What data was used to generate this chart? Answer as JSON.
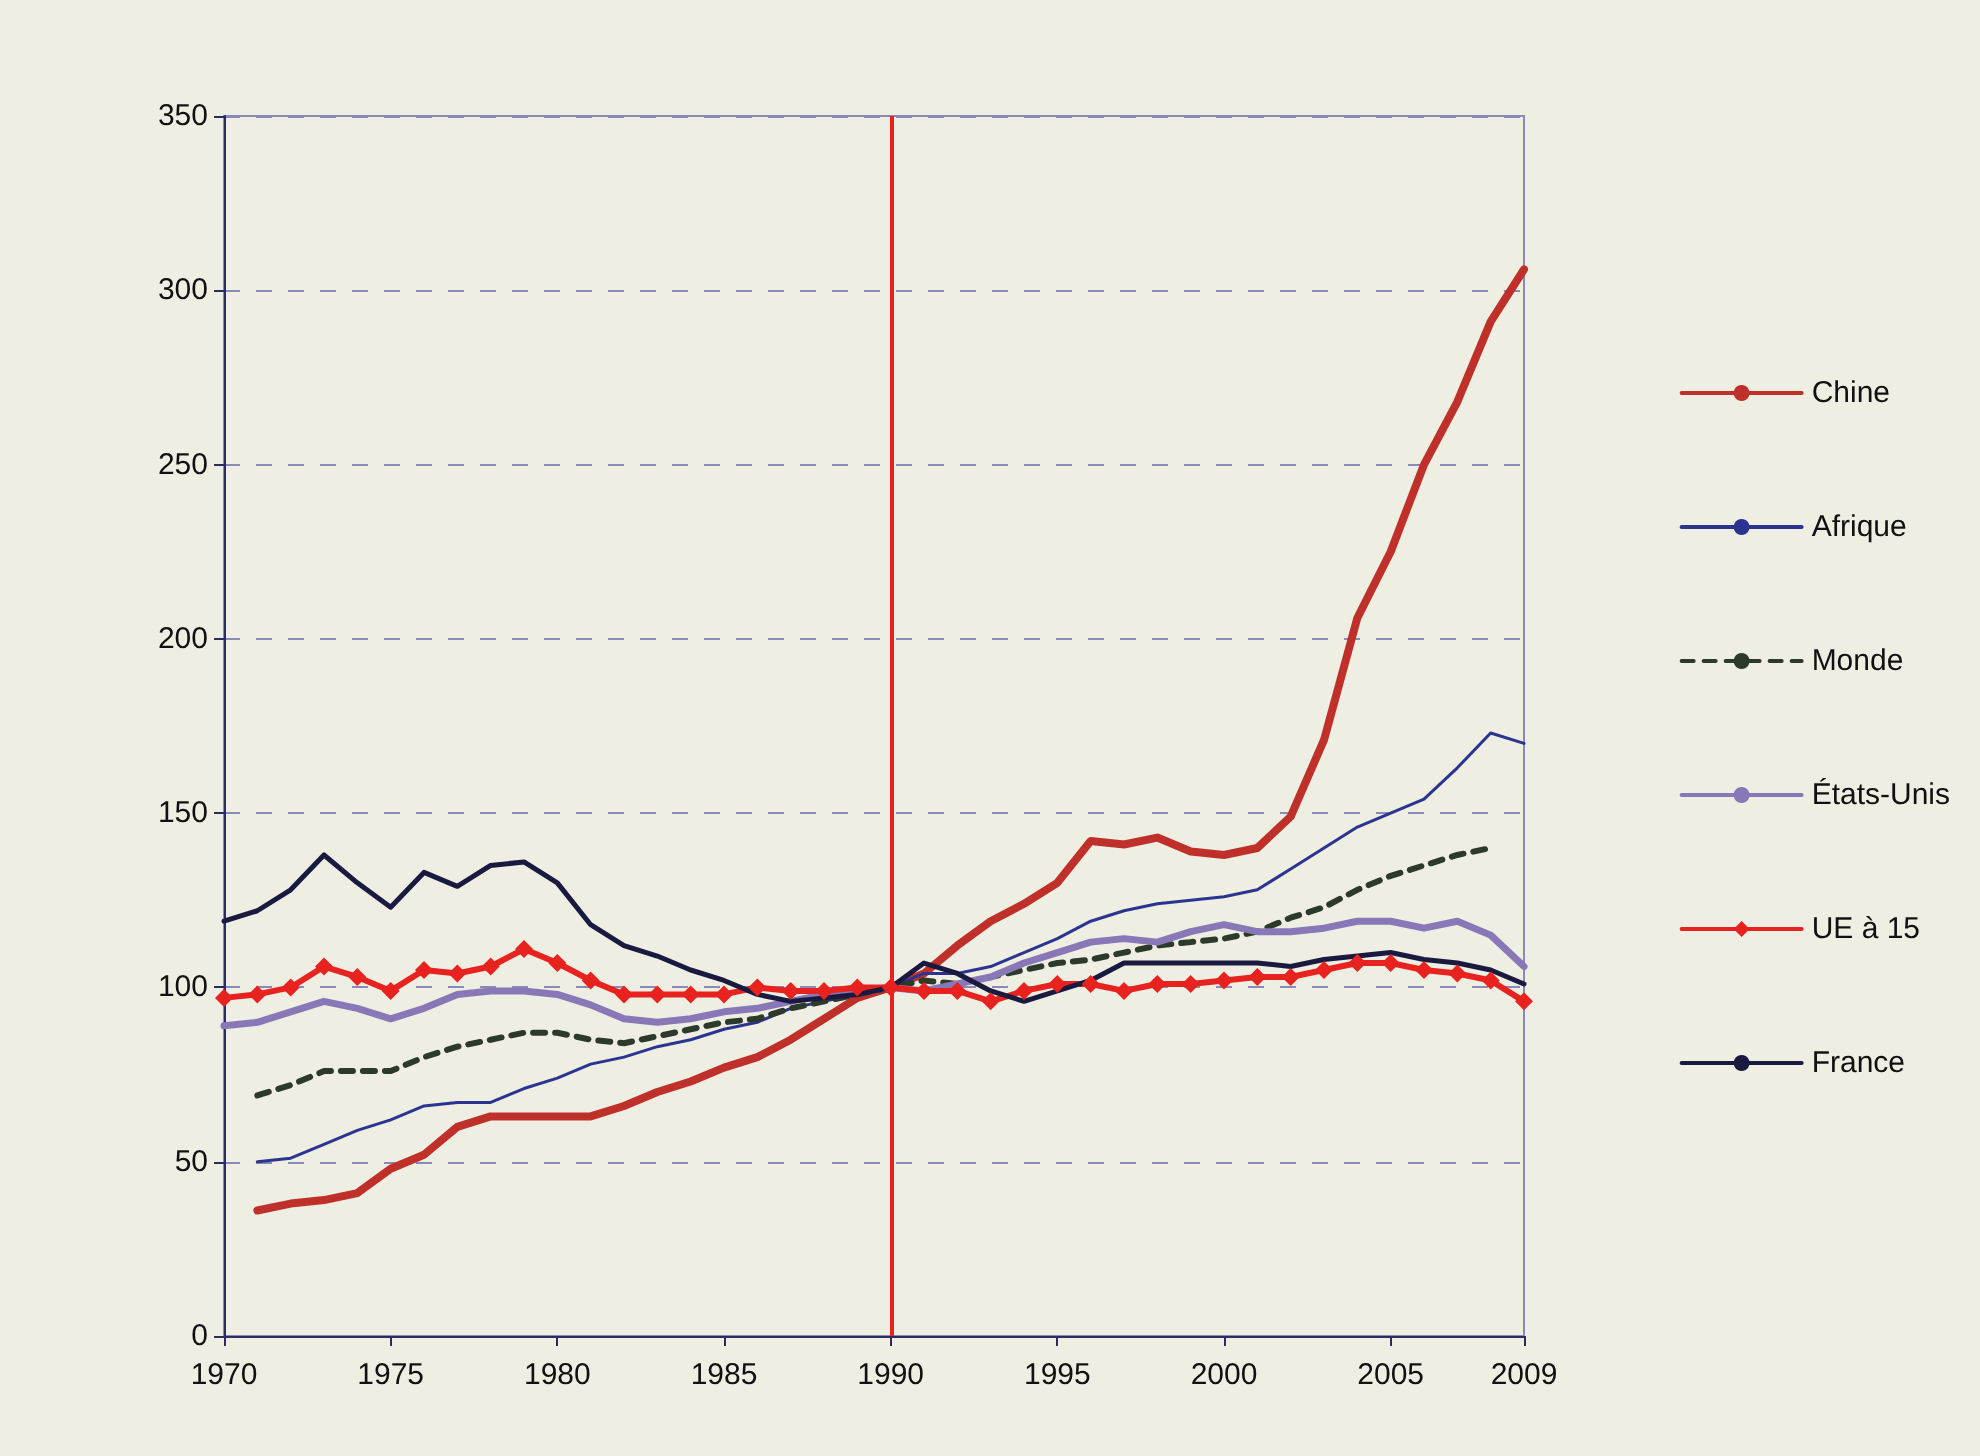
{
  "chart_data": {
    "type": "line",
    "x": [
      1970,
      1971,
      1972,
      1973,
      1974,
      1975,
      1976,
      1977,
      1978,
      1979,
      1980,
      1981,
      1982,
      1983,
      1984,
      1985,
      1986,
      1987,
      1988,
      1989,
      1990,
      1991,
      1992,
      1993,
      1994,
      1995,
      1996,
      1997,
      1998,
      1999,
      2000,
      2001,
      2002,
      2003,
      2004,
      2005,
      2006,
      2007,
      2008,
      2009
    ],
    "series": [
      {
        "name": "Chine",
        "color": "#c0302a",
        "line_style": "solid",
        "marker": "none",
        "values": [
          null,
          36,
          38,
          39,
          41,
          48,
          52,
          60,
          63,
          63,
          63,
          63,
          66,
          70,
          73,
          77,
          80,
          85,
          91,
          97,
          100,
          104,
          112,
          119,
          124,
          130,
          142,
          141,
          143,
          139,
          138,
          140,
          149,
          171,
          206,
          225,
          250,
          268,
          291,
          306
        ]
      },
      {
        "name": "Afrique",
        "color": "#2b3490",
        "line_style": "solid",
        "marker": "none",
        "values": [
          null,
          50,
          51,
          55,
          59,
          62,
          66,
          67,
          67,
          71,
          74,
          78,
          80,
          83,
          85,
          88,
          90,
          94,
          96,
          98,
          100,
          104,
          104,
          106,
          110,
          114,
          119,
          122,
          124,
          125,
          126,
          128,
          134,
          140,
          146,
          150,
          154,
          163,
          173,
          170
        ]
      },
      {
        "name": "Monde",
        "color": "#2d3a2a",
        "line_style": "dashed",
        "marker": "none",
        "values": [
          null,
          69,
          72,
          76,
          76,
          76,
          80,
          83,
          85,
          87,
          87,
          85,
          84,
          86,
          88,
          90,
          91,
          94,
          96,
          98,
          100,
          102,
          101,
          103,
          105,
          107,
          108,
          110,
          112,
          113,
          114,
          116,
          120,
          123,
          128,
          132,
          135,
          138,
          140,
          null
        ]
      },
      {
        "name": "États-Unis",
        "color": "#8878b8",
        "line_style": "solid",
        "marker": "none",
        "values": [
          89,
          90,
          93,
          96,
          94,
          91,
          94,
          98,
          99,
          99,
          98,
          95,
          91,
          90,
          91,
          93,
          94,
          96,
          98,
          99,
          100,
          99,
          101,
          103,
          107,
          110,
          113,
          114,
          113,
          116,
          118,
          116,
          116,
          117,
          119,
          119,
          117,
          119,
          115,
          106
        ]
      },
      {
        "name": "UE à 15",
        "color": "#e8221e",
        "line_style": "solid",
        "marker": "diamond",
        "values": [
          97,
          98,
          100,
          106,
          103,
          99,
          105,
          104,
          106,
          111,
          107,
          102,
          98,
          98,
          98,
          98,
          100,
          99,
          99,
          100,
          100,
          99,
          99,
          96,
          99,
          101,
          101,
          99,
          101,
          101,
          102,
          103,
          103,
          105,
          107,
          107,
          105,
          104,
          102,
          96
        ]
      },
      {
        "name": "France",
        "color": "#1a1a40",
        "line_style": "solid",
        "marker": "none",
        "values": [
          119,
          122,
          128,
          138,
          130,
          123,
          133,
          129,
          135,
          136,
          130,
          118,
          112,
          109,
          105,
          102,
          98,
          96,
          97,
          98,
          100,
          107,
          104,
          99,
          96,
          99,
          102,
          107,
          107,
          107,
          107,
          107,
          106,
          108,
          109,
          110,
          108,
          107,
          105,
          101
        ]
      }
    ],
    "xlim": [
      1970,
      2009
    ],
    "xticks": [
      1970,
      1975,
      1980,
      1985,
      1990,
      1995,
      2000,
      2005,
      2009
    ],
    "ylim": [
      0,
      350
    ],
    "yticks": [
      0,
      50,
      100,
      150,
      200,
      250,
      300,
      350
    ],
    "ref_lines": [
      {
        "axis": "x",
        "value": 1990,
        "color": "#e8221e",
        "line_style": "solid"
      }
    ],
    "grid": "y",
    "legend": "right"
  }
}
